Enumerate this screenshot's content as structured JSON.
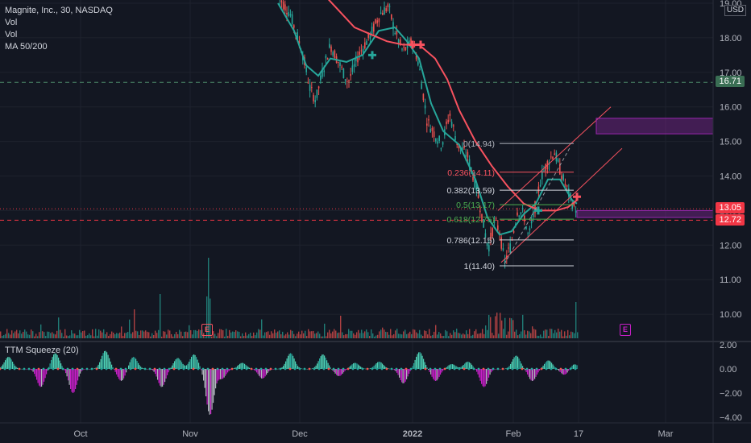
{
  "symbol_title": "Magnite, Inc., 30, NASDAQ",
  "legend_items": [
    "Vol",
    "Vol",
    "MA 50/200"
  ],
  "indicator_title": "TTM Squeeze (20)",
  "currency": "USD",
  "price_axis": [
    "19.00",
    "18.00",
    "17.00",
    "16.00",
    "15.00",
    "14.00",
    "13.00",
    "12.00",
    "11.00",
    "10.00"
  ],
  "indicator_axis": [
    "2.00",
    "0.00",
    "−2.00",
    "−4.00"
  ],
  "time_axis": [
    "Oct",
    "Nov",
    "Dec",
    "2022",
    "Feb",
    "17",
    "Mar"
  ],
  "price_tags": {
    "level_1": "16.71",
    "current": "13.05",
    "level_2": "12.72"
  },
  "fib_levels": [
    {
      "label": "0(14.94)",
      "price": 14.94,
      "color": "#b2b5be"
    },
    {
      "label": "0.236(14.11)",
      "price": 14.11,
      "color": "#f7525f"
    },
    {
      "label": "0.382(13.59)",
      "price": 13.59,
      "color": "#d1d4dc"
    },
    {
      "label": "0.5(13.17)",
      "price": 13.17,
      "color": "#4caf50"
    },
    {
      "label": "0.618(12.75)",
      "price": 12.75,
      "color": "#4caf50"
    },
    {
      "label": "0.786(12.15)",
      "price": 12.15,
      "color": "#d1d4dc"
    },
    {
      "label": "1(11.40)",
      "price": 11.4,
      "color": "#d1d4dc"
    }
  ],
  "earnings_marker": "E",
  "colors": {
    "background": "#131722",
    "up": "#26a69a",
    "down": "#ef5350",
    "ma_fast": "#26a69a",
    "ma_slow": "#f7525f",
    "squeeze_pos": "#4dd0b4",
    "squeeze_neg": "#c71fc7",
    "zone": "#9c27b0"
  }
}
